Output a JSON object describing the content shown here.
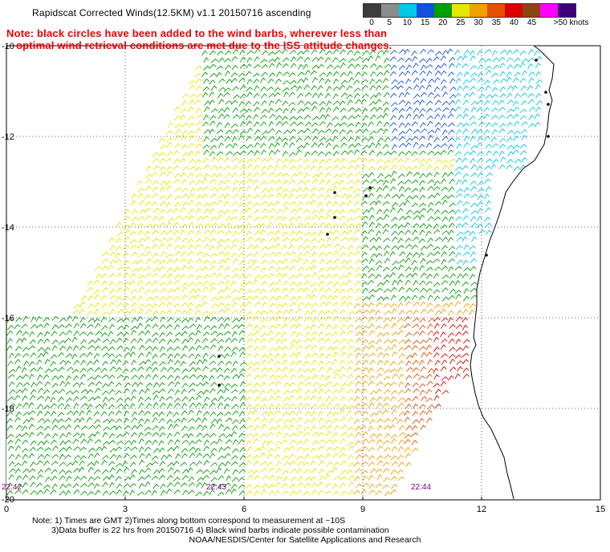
{
  "title": "Rapidscat Corrected Winds(12.5KM) v1.1 20150716 ascending",
  "note": {
    "line1": "Note: black circles have been added to the wind barbs, wherever less than",
    "line2": "optimal wind retrieval conditions are met due to the ISS attitude changes."
  },
  "legend": {
    "labels": [
      "0",
      "5",
      "10",
      "15",
      "20",
      "25",
      "30",
      "35",
      "40",
      "45",
      ">50 knots"
    ],
    "colors": [
      "#3c3c3c",
      "#8c8c8c",
      "#00c8e6",
      "#1450dc",
      "#00a000",
      "#e6e600",
      "#f0a000",
      "#e65000",
      "#dc0000",
      "#8b4513",
      "#ff00ff",
      "#3c0078"
    ]
  },
  "axes": {
    "x_ticks": [
      "0",
      "3",
      "6",
      "9",
      "12",
      "15"
    ],
    "y_ticks": [
      "-10",
      "-12",
      "-14",
      "-16",
      "-18",
      "-20"
    ],
    "grid": "dotted"
  },
  "swath_times": [
    "22:42",
    "22:43",
    "22:44"
  ],
  "footnote": {
    "line1": "Note: 1) Times are GMT 2)Times along bottom correspond to measurement at ~10S",
    "line2": "3)Data buffer is 22 hrs from 20150716 4) Black wind barbs indicate possible contamination"
  },
  "credit": "NOAA/NESDIS/Center for Satellite Applications and Research"
}
